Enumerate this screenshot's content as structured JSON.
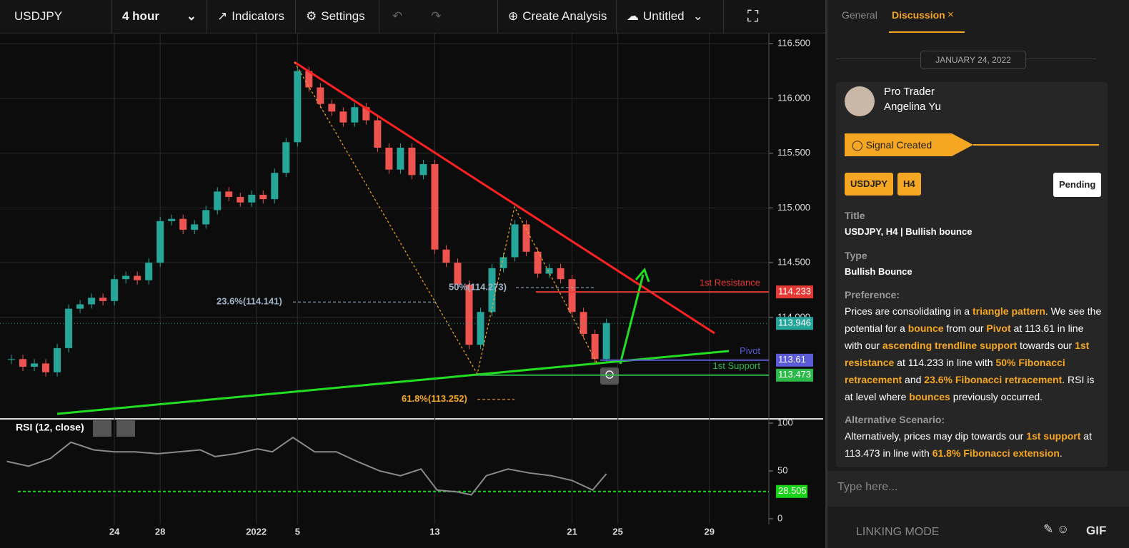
{
  "toolbar": {
    "symbol": "USDJPY",
    "interval": "4 hour",
    "indicators": "Indicators",
    "settings": "Settings",
    "create": "Create Analysis",
    "file": "Untitled"
  },
  "chart_data": {
    "type": "candlestick",
    "x": [
      -12.5,
      -12,
      -11.5,
      -11,
      -10.5,
      -10,
      -9.5,
      -9,
      -8.5,
      -8,
      -7.5,
      -7,
      -6.5,
      -6,
      -5.5,
      -5,
      -4.5,
      -4,
      -3.5,
      -3,
      -2.5,
      -2,
      -1.5,
      -1,
      -0.5,
      0,
      0.5,
      1,
      1.5,
      2,
      2.5,
      3,
      3.5,
      4,
      4.5,
      5,
      5.5,
      6,
      6.5,
      7,
      7.5,
      8,
      8.5,
      9,
      9.5,
      10,
      10.5,
      11,
      11.5,
      12,
      12.5,
      13,
      13.5
    ],
    "close": [
      113.62,
      113.55,
      113.58,
      113.5,
      113.72,
      114.08,
      114.12,
      114.18,
      114.15,
      114.35,
      114.38,
      114.34,
      114.5,
      114.88,
      114.9,
      114.8,
      114.85,
      114.98,
      115.15,
      115.1,
      115.05,
      115.12,
      115.08,
      115.32,
      115.6,
      116.25,
      116.1,
      115.95,
      115.88,
      115.78,
      115.92,
      115.8,
      115.55,
      115.35,
      115.55,
      115.3,
      115.4,
      114.62,
      114.5,
      114.3,
      113.75,
      114.05,
      114.45,
      114.55,
      114.85,
      114.6,
      114.4,
      114.45,
      114.35,
      114.05,
      113.85,
      113.62,
      113.95
    ],
    "up_color": "#26a69a",
    "down_color": "#ef5350",
    "xlim": [
      -13,
      20.6
    ],
    "ylim": [
      113.12,
      116.54
    ],
    "xticks": [
      {
        "value": -8,
        "label": "24"
      },
      {
        "value": -6,
        "label": "28"
      },
      {
        "value": -1.8,
        "label": "2022"
      },
      {
        "value": 0,
        "label": "5"
      },
      {
        "value": 6,
        "label": "13"
      },
      {
        "value": 12,
        "label": "21"
      },
      {
        "value": 14,
        "label": "25"
      },
      {
        "value": 18,
        "label": "29"
      }
    ],
    "yticks": [
      {
        "value": 114,
        "label": "114.000"
      },
      {
        "value": 114.5,
        "label": "114.500"
      },
      {
        "value": 115,
        "label": "115.000"
      },
      {
        "value": 115.5,
        "label": "115.500"
      },
      {
        "value": 116,
        "label": "116.000"
      },
      {
        "value": 116.5,
        "label": "116.500"
      }
    ],
    "grid": true,
    "last_price": {
      "value": 113.946,
      "color": "#26a69a"
    },
    "levels": [
      {
        "name": "1st Resistance",
        "value": 114.233,
        "color": "#e53935"
      },
      {
        "name": "Pivot",
        "value": 113.61,
        "color": "#5b5bd6"
      },
      {
        "name": "1st Support",
        "value": 113.473,
        "color": "#2db84a"
      }
    ],
    "fibs": [
      {
        "label": "23.6%(114.141)",
        "value": 114.141,
        "color": "#9fb3c8"
      },
      {
        "label": "50%(114.273)",
        "value": 114.273,
        "color": "#9fb3c8"
      },
      {
        "label": "61.8%(113.252)",
        "value": 113.252,
        "color": "#f5a623"
      }
    ],
    "rsi": {
      "label": "RSI (12, close)",
      "x": [
        -12.7,
        -11.75,
        -10.8,
        -9.9,
        -8.9,
        -8,
        -7.1,
        -6.1,
        -5.2,
        -4.25,
        -3.6,
        -2.7,
        -1.75,
        -1.1,
        -0.2,
        0.75,
        1.7,
        2.6,
        3.6,
        4.5,
        5.4,
        6.1,
        7,
        7.6,
        8.25,
        9.2,
        10.1,
        11.1,
        12,
        12.9,
        13.5
      ],
      "values": [
        60,
        55,
        63,
        80,
        72,
        70,
        70,
        68,
        70,
        72,
        65,
        68,
        73,
        70,
        85,
        70,
        70,
        60,
        50,
        45,
        52,
        30,
        28,
        25,
        45,
        52,
        48,
        45,
        40,
        30,
        47
      ],
      "color": "#8a8a8a",
      "ylim": [
        0,
        100
      ],
      "yticks": [
        0,
        50,
        100
      ],
      "level": 28.505,
      "level_color": "#18d418"
    }
  },
  "panel": {
    "tabs": [
      "General",
      "Discussion"
    ],
    "date": "JANUARY 24, 2022",
    "role": "Pro Trader",
    "author": "Angelina Yu",
    "signal": "Signal Created",
    "symbol": "USDJPY",
    "timeframe": "H4",
    "status": "Pending",
    "title_label": "Title",
    "title": "USDJPY, H4 | Bullish bounce",
    "type_label": "Type",
    "type": "Bullish Bounce",
    "preference_label": "Preference:",
    "preference": [
      {
        "text": "Prices are consolidating in a ",
        "hl": false
      },
      {
        "text": "triangle pattern",
        "hl": true
      },
      {
        "text": ". We see the potential for a ",
        "hl": false
      },
      {
        "text": "bounce",
        "hl": true
      },
      {
        "text": " from our ",
        "hl": false
      },
      {
        "text": "Pivot",
        "hl": true
      },
      {
        "text": " at 113.61 in line with our ",
        "hl": false
      },
      {
        "text": "ascending trendline support",
        "hl": true
      },
      {
        "text": " towards our ",
        "hl": false
      },
      {
        "text": "1st resistance",
        "hl": true
      },
      {
        "text": " at 114.233 in line with ",
        "hl": false
      },
      {
        "text": "50% Fibonacci retracement",
        "hl": true
      },
      {
        "text": " and ",
        "hl": false
      },
      {
        "text": "23.6% Fibonacci retracement",
        "hl": true
      },
      {
        "text": ". RSI is at level where ",
        "hl": false
      },
      {
        "text": "bounces",
        "hl": true
      },
      {
        "text": " previously occurred.",
        "hl": false
      }
    ],
    "alternative_label": "Alternative Scenario:",
    "alternative": [
      {
        "text": "Alternatively, prices may dip towards our ",
        "hl": false
      },
      {
        "text": "1st support",
        "hl": true
      },
      {
        "text": " at 113.473 in line with ",
        "hl": false
      },
      {
        "text": "61.8% Fibonacci extension",
        "hl": true
      },
      {
        "text": ".",
        "hl": false
      }
    ],
    "input_placeholder": "Type here...",
    "linking": "LINKING MODE",
    "gif": "GIF"
  }
}
